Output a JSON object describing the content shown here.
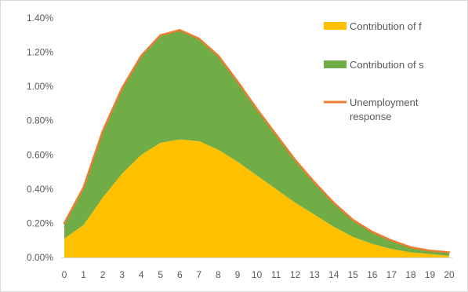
{
  "chart_data": {
    "type": "area",
    "x": [
      0,
      1,
      2,
      3,
      4,
      5,
      6,
      7,
      8,
      9,
      10,
      11,
      12,
      13,
      14,
      15,
      16,
      17,
      18,
      19,
      20
    ],
    "ylim": [
      0,
      0.014
    ],
    "y_ticks": [
      "0.00%",
      "0.20%",
      "0.40%",
      "0.60%",
      "0.80%",
      "1.00%",
      "1.20%",
      "1.40%"
    ],
    "x_ticks": [
      "0",
      "1",
      "2",
      "3",
      "4",
      "5",
      "6",
      "7",
      "8",
      "9",
      "10",
      "11",
      "12",
      "13",
      "14",
      "15",
      "16",
      "17",
      "18",
      "19",
      "20"
    ],
    "series": [
      {
        "name": "Contribution of f",
        "kind": "stacked-area",
        "color": "#FFC000",
        "values": [
          0.0011,
          0.0019,
          0.0035,
          0.0049,
          0.006,
          0.0067,
          0.0069,
          0.0068,
          0.0063,
          0.0056,
          0.0048,
          0.004,
          0.0032,
          0.0025,
          0.0018,
          0.0012,
          0.0008,
          0.0005,
          0.0003,
          0.0002,
          0.0001
        ]
      },
      {
        "name": "Contribution of s",
        "kind": "stacked-area",
        "color": "#70AD47",
        "values": [
          0.0009,
          0.0022,
          0.0039,
          0.005,
          0.0058,
          0.0063,
          0.0064,
          0.006,
          0.0055,
          0.0047,
          0.0039,
          0.0032,
          0.0025,
          0.0019,
          0.0014,
          0.001,
          0.0007,
          0.0005,
          0.0003,
          0.0002,
          0.0002
        ]
      },
      {
        "name": "Unemployment response",
        "kind": "line",
        "color": "#ED7D31",
        "values": [
          0.002,
          0.0041,
          0.0074,
          0.0099,
          0.0118,
          0.013,
          0.0133,
          0.0128,
          0.0118,
          0.0103,
          0.0087,
          0.0072,
          0.0057,
          0.0044,
          0.0032,
          0.0022,
          0.0015,
          0.001,
          0.0006,
          0.0004,
          0.0003
        ]
      }
    ],
    "legend": {
      "position": "right",
      "items": [
        {
          "label_lines": [
            "Contribution of f"
          ],
          "marker": "box",
          "color": "#FFC000"
        },
        {
          "label_lines": [
            "Contribution of s"
          ],
          "marker": "box",
          "color": "#70AD47"
        },
        {
          "label_lines": [
            "Unemployment",
            "response"
          ],
          "marker": "line",
          "color": "#ED7D31"
        }
      ]
    },
    "grid": false,
    "border_color": "#d9d9d9"
  }
}
